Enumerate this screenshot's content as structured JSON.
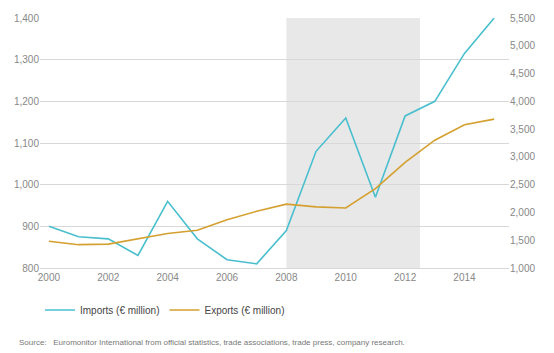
{
  "chart_data": {
    "type": "line",
    "x": [
      2000,
      2001,
      2002,
      2003,
      2004,
      2005,
      2006,
      2007,
      2008,
      2009,
      2010,
      2011,
      2012,
      2013,
      2014,
      2015
    ],
    "series": [
      {
        "name": "Imports (€ million)",
        "color": "#49bfce",
        "values": [
          900,
          875,
          870,
          830,
          960,
          870,
          820,
          810,
          890,
          1080,
          1160,
          970,
          1165,
          1200,
          1315,
          1400
        ]
      },
      {
        "name": "Exports (€ million)",
        "color": "#d4a030",
        "axis": "y2",
        "values": [
          1480,
          1420,
          1430,
          1530,
          1620,
          1680,
          1870,
          2020,
          2150,
          2100,
          2080,
          2430,
          2900,
          3300,
          3580,
          3680
        ]
      }
    ],
    "xlim": [
      1999.7,
      2015.5
    ],
    "xticks": [
      2000,
      2002,
      2004,
      2006,
      2008,
      2010,
      2012,
      2014
    ],
    "ylim": [
      800,
      1400
    ],
    "yticks": [
      800,
      900,
      {
        "value": 1000,
        "label": "1,000"
      },
      {
        "value": 1100,
        "label": "1,100"
      },
      {
        "value": 1200,
        "label": "1,200"
      },
      {
        "value": 1300,
        "label": "1,300"
      },
      {
        "value": 1400,
        "label": "1,400"
      }
    ],
    "y2lim": [
      1000,
      5500
    ],
    "y2ticks": [
      {
        "value": 1000,
        "label": "1,000"
      },
      {
        "value": 1500,
        "label": "1,500"
      },
      {
        "value": 2000,
        "label": "2,000"
      },
      {
        "value": 2500,
        "label": "2,500"
      },
      {
        "value": 3000,
        "label": "3,000"
      },
      {
        "value": 3500,
        "label": "3,500"
      },
      {
        "value": 4000,
        "label": "4,000"
      },
      {
        "value": 4500,
        "label": "4,500"
      },
      {
        "value": 5000,
        "label": "5,000"
      },
      {
        "value": 5500,
        "label": "5,500"
      }
    ],
    "shade": {
      "range": [
        2008,
        2012.5
      ],
      "color": "#e8e8e8"
    },
    "annotations": [
      "Source:   Euromonitor International from official statistics, trade associations, trade press, company research."
    ],
    "grid": true,
    "legend": "bottom"
  }
}
